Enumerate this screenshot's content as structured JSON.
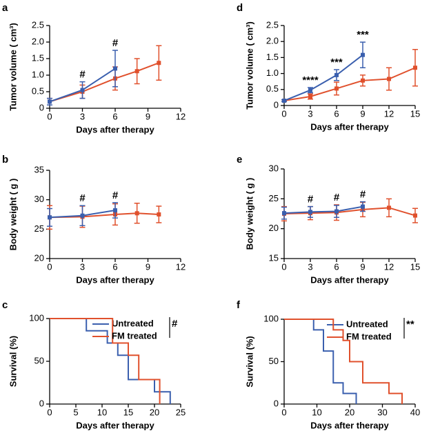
{
  "chart_data": [
    {
      "type": "line",
      "panel": "a",
      "ylabel": "Tumor volume ( cm³)",
      "xlabel": "Days after therapy",
      "xlim": [
        0,
        12
      ],
      "xticks": [
        0,
        3,
        6,
        9,
        12
      ],
      "ylim": [
        0,
        2.5
      ],
      "yticks": [
        0,
        0.5,
        {
          "value": 1,
          "label": "1.0"
        },
        1.5,
        {
          "value": 2,
          "label": "2.0"
        },
        2.5
      ],
      "series": [
        {
          "color": "#3a5fae",
          "x": [
            0,
            3,
            6
          ],
          "values": [
            0.2,
            0.55,
            1.2
          ],
          "errors": [
            0.1,
            0.25,
            0.55
          ]
        },
        {
          "color": "#e0502c",
          "x": [
            0,
            3,
            6,
            8,
            10
          ],
          "values": [
            0.2,
            0.5,
            0.9,
            1.12,
            1.37
          ],
          "errors": [
            0.1,
            0.2,
            0.35,
            0.38,
            0.52
          ]
        }
      ],
      "annotations": [
        {
          "x": 3,
          "text": "#"
        },
        {
          "x": 6,
          "text": "#"
        }
      ]
    },
    {
      "type": "line",
      "panel": "b",
      "ylabel": "Body weight ( g )",
      "xlabel": "Days after therapy",
      "xlim": [
        0,
        12
      ],
      "xticks": [
        0,
        3,
        6,
        9,
        12
      ],
      "ylim": [
        20,
        35
      ],
      "yticks": [
        20,
        25,
        30,
        35
      ],
      "series": [
        {
          "color": "#3a5fae",
          "x": [
            0,
            3,
            6
          ],
          "values": [
            27,
            27.3,
            28.2
          ],
          "errors": [
            1.5,
            1.7,
            1.3
          ]
        },
        {
          "color": "#e0502c",
          "x": [
            0,
            3,
            6,
            8,
            10
          ],
          "values": [
            27,
            27.1,
            27.5,
            27.7,
            27.5
          ],
          "errors": [
            2,
            1.8,
            1.8,
            1.7,
            1.4
          ]
        }
      ],
      "annotations": [
        {
          "x": 3,
          "text": "#"
        },
        {
          "x": 6,
          "text": "#"
        }
      ]
    },
    {
      "type": "step",
      "panel": "c",
      "ylabel": "Survival (%)",
      "xlabel": "Days after therapy",
      "xlim": [
        0,
        25
      ],
      "xticks": [
        0,
        5,
        10,
        15,
        20,
        25
      ],
      "ylim": [
        0,
        100
      ],
      "yticks": [
        0,
        50,
        100
      ],
      "significance": "#",
      "series": [
        {
          "name": "Untreated",
          "color": "#3a5fae",
          "x": [
            0,
            7,
            11,
            13,
            15,
            20,
            23
          ],
          "values": [
            100,
            85.7,
            71.4,
            57.1,
            28.6,
            14.3,
            0
          ]
        },
        {
          "name": "FM treated",
          "color": "#e0502c",
          "x": [
            0,
            12,
            15,
            17,
            21
          ],
          "values": [
            100,
            71.4,
            57.1,
            28.6,
            0
          ]
        }
      ]
    },
    {
      "type": "line",
      "panel": "d",
      "ylabel": "Tumor volume ( cm³)",
      "xlabel": "Days after therapy",
      "xlim": [
        0,
        15
      ],
      "xticks": [
        0,
        3,
        6,
        9,
        12,
        15
      ],
      "ylim": [
        0,
        2.5
      ],
      "yticks": [
        0,
        0.5,
        {
          "value": 1,
          "label": "1.0"
        },
        1.5,
        {
          "value": 2,
          "label": "2.0"
        },
        2.5
      ],
      "series": [
        {
          "color": "#3a5fae",
          "x": [
            0,
            3,
            6,
            9
          ],
          "values": [
            0.15,
            0.48,
            0.95,
            1.58
          ],
          "errors": [
            0.03,
            0.08,
            0.17,
            0.4
          ]
        },
        {
          "color": "#e0502c",
          "x": [
            0,
            3,
            6,
            9,
            12,
            15
          ],
          "values": [
            0.15,
            0.28,
            0.53,
            0.78,
            0.83,
            1.18
          ],
          "errors": [
            0.03,
            0.08,
            0.2,
            0.17,
            0.35,
            0.57
          ]
        }
      ],
      "annotations": [
        {
          "x": 3,
          "text": "****"
        },
        {
          "x": 6,
          "text": "***"
        },
        {
          "x": 9,
          "text": "***"
        }
      ]
    },
    {
      "type": "line",
      "panel": "e",
      "ylabel": "Body weight ( g )",
      "xlabel": "Days after therapy",
      "xlim": [
        0,
        15
      ],
      "xticks": [
        0,
        3,
        6,
        9,
        12,
        15
      ],
      "ylim": [
        15,
        30
      ],
      "yticks": [
        15,
        20,
        25,
        30
      ],
      "series": [
        {
          "color": "#3a5fae",
          "x": [
            0,
            3,
            6,
            9
          ],
          "values": [
            22.6,
            22.8,
            22.9,
            23.7
          ],
          "errors": [
            1,
            0.9,
            1,
            0.8
          ]
        },
        {
          "color": "#e0502c",
          "x": [
            0,
            3,
            6,
            9,
            12,
            15
          ],
          "values": [
            22.5,
            22.6,
            22.7,
            23.2,
            23.5,
            22.2
          ],
          "errors": [
            1.2,
            1.1,
            1.3,
            1.2,
            1.5,
            1.2
          ]
        }
      ],
      "annotations": [
        {
          "x": 3,
          "text": "#"
        },
        {
          "x": 6,
          "text": "#"
        },
        {
          "x": 9,
          "text": "#"
        }
      ]
    },
    {
      "type": "step",
      "panel": "f",
      "ylabel": "Survival (%)",
      "xlabel": "Days after therapy",
      "xlim": [
        0,
        40
      ],
      "xticks": [
        0,
        10,
        20,
        30,
        40
      ],
      "ylim": [
        0,
        100
      ],
      "yticks": [
        0,
        50,
        100
      ],
      "significance": "**",
      "series": [
        {
          "name": "Untreated",
          "color": "#3a5fae",
          "x": [
            0,
            9,
            12,
            15,
            18,
            22
          ],
          "values": [
            100,
            87.5,
            62.5,
            25,
            12.5,
            0
          ]
        },
        {
          "name": "FM treated",
          "color": "#e0502c",
          "x": [
            0,
            15,
            18,
            20,
            24,
            32,
            36
          ],
          "values": [
            100,
            87.5,
            75,
            50,
            25,
            12.5,
            0
          ]
        }
      ]
    }
  ]
}
